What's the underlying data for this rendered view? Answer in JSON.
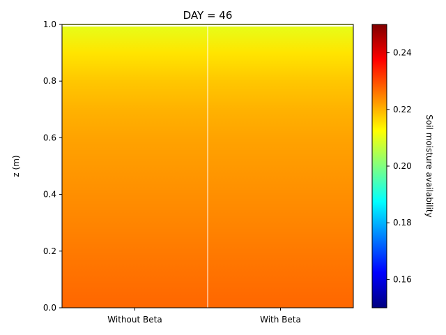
{
  "chart_data": {
    "type": "heatmap",
    "title": "DAY = 46",
    "xlabel": "",
    "ylabel": "z (m)",
    "categories": [
      "Without Beta",
      "With Beta"
    ],
    "ylim": [
      0,
      1
    ],
    "yticks": [
      "0.0",
      "0.2",
      "0.4",
      "0.6",
      "0.8",
      "1.0"
    ],
    "z_profile": [
      {
        "z": 0.0,
        "value": 0.2275
      },
      {
        "z": 0.1,
        "value": 0.2265
      },
      {
        "z": 0.2,
        "value": 0.2255
      },
      {
        "z": 0.3,
        "value": 0.2245
      },
      {
        "z": 0.4,
        "value": 0.2235
      },
      {
        "z": 0.5,
        "value": 0.2225
      },
      {
        "z": 0.6,
        "value": 0.2215
      },
      {
        "z": 0.7,
        "value": 0.22
      },
      {
        "z": 0.8,
        "value": 0.218
      },
      {
        "z": 0.9,
        "value": 0.215
      },
      {
        "z": 1.0,
        "value": 0.21
      }
    ],
    "colorbar": {
      "label": "Soil moisture availability",
      "range": [
        0.15,
        0.25
      ],
      "ticks": [
        "0.16",
        "0.18",
        "0.20",
        "0.22",
        "0.24"
      ],
      "colormap": "jet"
    },
    "grid": false
  }
}
